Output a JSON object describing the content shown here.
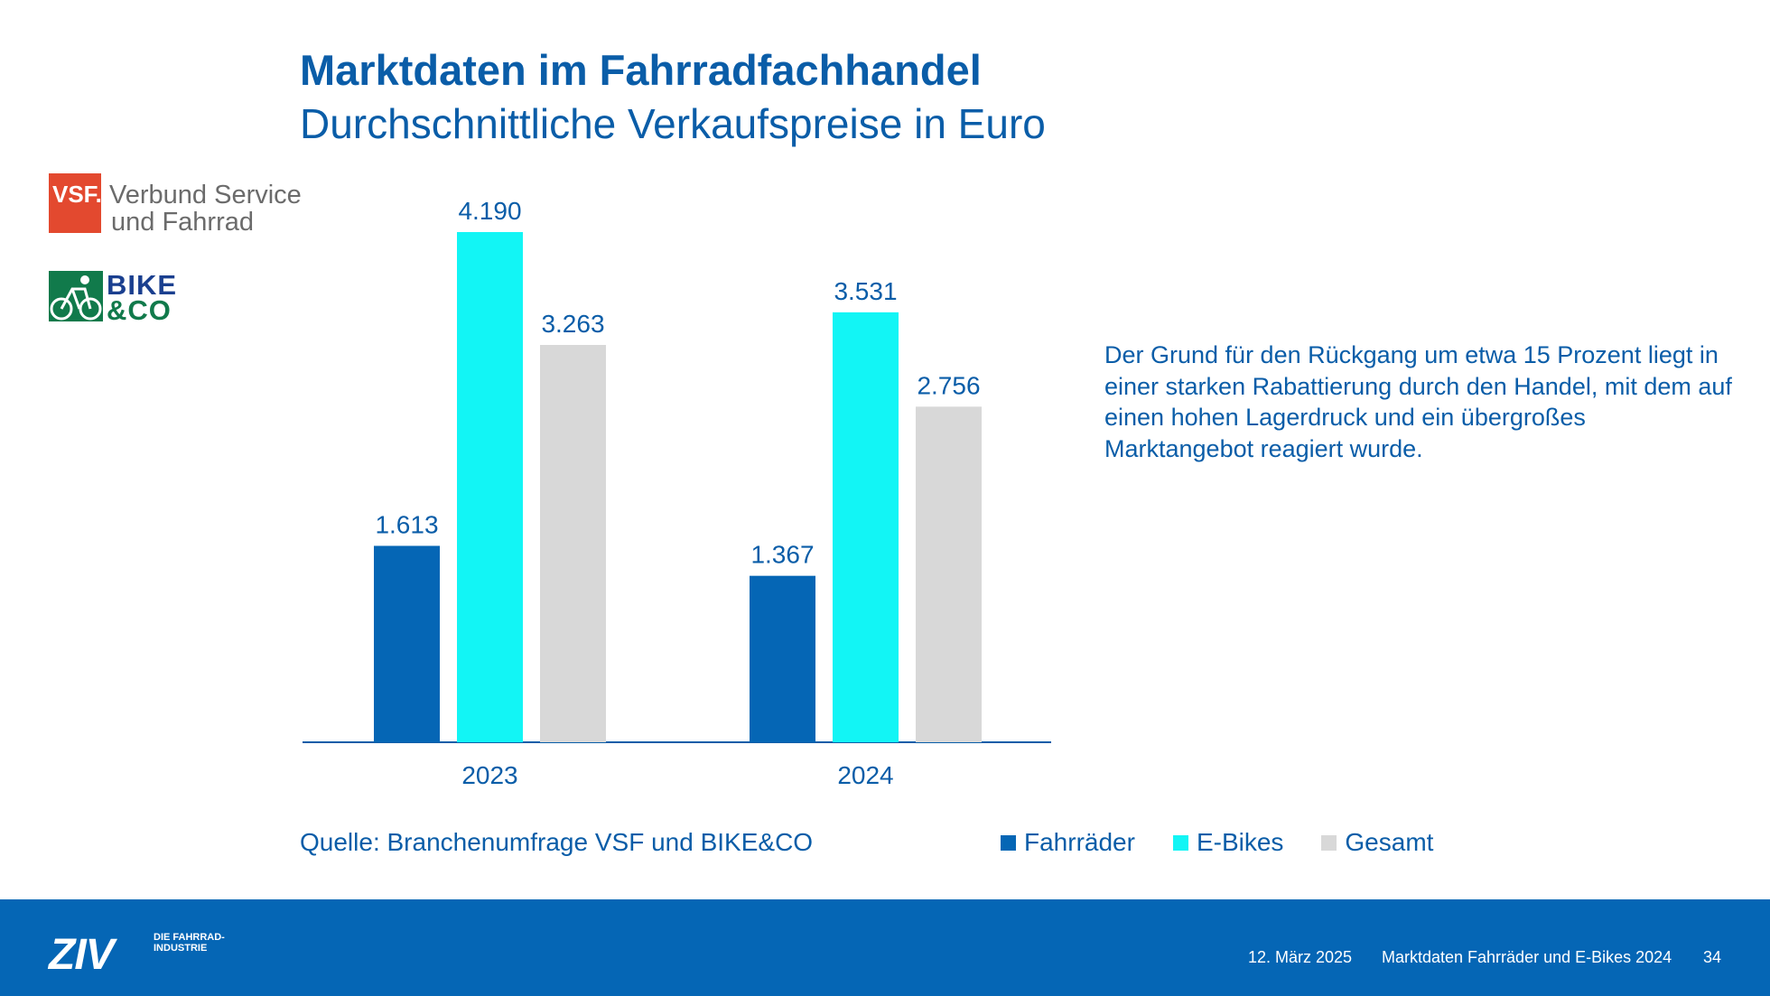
{
  "header": {
    "title": "Marktdaten im Fahrradfachhandel",
    "subtitle": "Durchschnittliche Verkaufspreise in Euro"
  },
  "logos": {
    "vsf_mark": "VSF.",
    "vsf_line1": "Verbund Service",
    "vsf_line2": "und Fahrrad",
    "bike_line1": "BIKE",
    "bike_line2": "&CO"
  },
  "note": "Der Grund für den Rückgang um etwa 15 Prozent liegt in einer starken Rabattierung durch den Handel, mit dem auf einen hohen Lagerdruck und ein übergroßes Marktangebot reagiert wurde.",
  "source": "Quelle: Branchenumfrage VSF und BIKE&CO",
  "colors": {
    "title": "#0a5da8",
    "fahrraeder": "#0566b5",
    "ebikes": "#12f5f5",
    "gesamt": "#d8d8d8",
    "footer": "#0566b5"
  },
  "chart_data": {
    "type": "bar",
    "categories": [
      "2023",
      "2024"
    ],
    "series": [
      {
        "name": "Fahrräder",
        "values": [
          1613,
          1367
        ],
        "labels": [
          "1.613",
          "1.367"
        ]
      },
      {
        "name": "E-Bikes",
        "values": [
          4190,
          3531
        ],
        "labels": [
          "4.190",
          "3.531"
        ]
      },
      {
        "name": "Gesamt",
        "values": [
          3263,
          2756
        ],
        "labels": [
          "3.263",
          "2.756"
        ]
      }
    ],
    "ylim": [
      0,
      4190
    ],
    "grid": false,
    "legend": "bottom-right"
  },
  "legend": {
    "items": [
      {
        "label": "Fahrräder",
        "color": "#0566b5"
      },
      {
        "label": "E-Bikes",
        "color": "#12f5f5"
      },
      {
        "label": "Gesamt",
        "color": "#d8d8d8"
      }
    ]
  },
  "footer": {
    "brand": "ZIV",
    "tagline": "DIE FAHRRAD- INDUSTRIE",
    "date": "12. März 2025",
    "title": "Marktdaten Fahrräder und E-Bikes 2024",
    "page": "34"
  }
}
